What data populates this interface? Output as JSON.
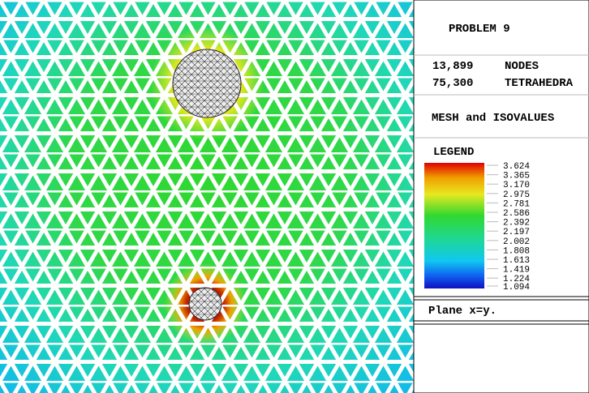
{
  "panel": {
    "title": "PROBLEM 9",
    "stats": [
      {
        "count": "13,899",
        "label": "NODES"
      },
      {
        "count": "75,300",
        "label": "TETRAHEDRA"
      }
    ],
    "mode": "MESH and ISOVALUES",
    "legend": {
      "title": "LEGEND",
      "values": [
        "3.624",
        "3.365",
        "3.170",
        "2.975",
        "2.781",
        "2.586",
        "2.392",
        "2.197",
        "2.002",
        "1.808",
        "1.613",
        "1.419",
        "1.224",
        "1.094"
      ]
    },
    "plane": "Plane x=y."
  }
}
